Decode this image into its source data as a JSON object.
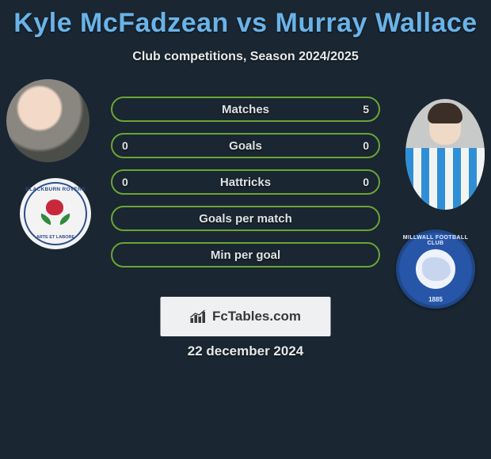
{
  "title": "Kyle McFadzean vs Murray Wallace",
  "subtitle": "Club competitions, Season 2024/2025",
  "colors": {
    "title": "#6ab3e8",
    "background": "#1a2631",
    "row_border": "#6aa536",
    "text": "#e8e9ea"
  },
  "rows": [
    {
      "label": "Matches",
      "left": "",
      "right": "5"
    },
    {
      "label": "Goals",
      "left": "0",
      "right": "0"
    },
    {
      "label": "Hattricks",
      "left": "0",
      "right": "0"
    },
    {
      "label": "Goals per match",
      "left": "",
      "right": ""
    },
    {
      "label": "Min per goal",
      "left": "",
      "right": ""
    }
  ],
  "left_crest": {
    "top_text": "BLACKBURN ROVERS",
    "bottom_text": "ARTE ET LABORE"
  },
  "right_crest": {
    "top_text": "MILLWALL FOOTBALL CLUB",
    "year": "1885"
  },
  "source": "FcTables.com",
  "date": "22 december 2024"
}
